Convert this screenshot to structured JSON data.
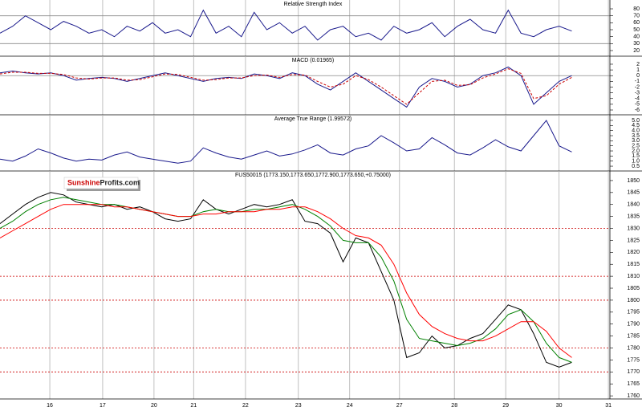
{
  "chart_data": [
    {
      "type": "line",
      "title": "Relative Strength Index",
      "x": [
        0,
        0.25,
        0.5,
        0.75,
        1,
        1.25,
        1.5,
        1.75,
        2,
        2.25,
        2.5,
        2.75,
        3,
        3.25,
        3.5,
        3.75,
        4,
        4.25,
        4.5,
        4.75,
        5,
        5.25,
        5.5,
        5.75,
        6,
        6.25,
        6.5,
        6.75,
        7,
        7.25,
        7.5,
        7.75,
        8,
        8.25,
        8.5,
        8.75,
        9,
        9.25,
        9.5,
        9.75,
        10,
        10.25,
        10.5,
        10.75,
        11,
        11.25
      ],
      "series": [
        {
          "name": "RSI",
          "color": "#1a1a8c",
          "style": "solid",
          "values": [
            45,
            55,
            70,
            60,
            50,
            62,
            55,
            45,
            50,
            40,
            55,
            48,
            60,
            45,
            50,
            40,
            78,
            45,
            55,
            40,
            75,
            50,
            60,
            45,
            55,
            35,
            50,
            55,
            40,
            45,
            35,
            55,
            45,
            50,
            60,
            40,
            55,
            65,
            50,
            45,
            78,
            45,
            40,
            50,
            55,
            48
          ]
        }
      ],
      "hlines": {
        "values": [
          70,
          30
        ],
        "color": "#888888",
        "style": "solid"
      },
      "xlim": [
        0,
        12
      ],
      "xticks": [
        0.98,
        2.02,
        3.03,
        3.81,
        4.83,
        5.87,
        6.88,
        7.86,
        8.94,
        9.95,
        11.0,
        11.97
      ],
      "ylim": [
        11.9,
        92.7
      ],
      "yticks": [
        80,
        70,
        60,
        50,
        40,
        30,
        20
      ]
    },
    {
      "type": "line",
      "title": "MACD (0.01965)",
      "x": [
        0,
        0.25,
        0.5,
        0.75,
        1,
        1.25,
        1.5,
        1.75,
        2,
        2.25,
        2.5,
        2.75,
        3,
        3.25,
        3.5,
        3.75,
        4,
        4.25,
        4.5,
        4.75,
        5,
        5.25,
        5.5,
        5.75,
        6,
        6.25,
        6.5,
        6.75,
        7,
        7.25,
        7.5,
        7.75,
        8,
        8.25,
        8.5,
        8.75,
        9,
        9.25,
        9.5,
        9.75,
        10,
        10.25,
        10.5,
        10.75,
        11,
        11.25
      ],
      "series": [
        {
          "name": "MACD",
          "color": "#1a1a8c",
          "style": "solid",
          "values": [
            0.5,
            0.8,
            0.5,
            0.3,
            0.5,
            0,
            -0.8,
            -0.5,
            -0.3,
            -0.5,
            -1,
            -0.5,
            0,
            0.5,
            0,
            -0.5,
            -1,
            -0.5,
            -0.3,
            -0.5,
            0.3,
            0,
            -0.5,
            0.5,
            0,
            -1.5,
            -2.5,
            -1,
            0.5,
            -1,
            -2.5,
            -4,
            -5.5,
            -2,
            -0.5,
            -1,
            -2,
            -1.5,
            0,
            0.5,
            1.5,
            0,
            -5,
            -3,
            -1,
            0
          ]
        },
        {
          "name": "Signal",
          "color": "#cc0000",
          "style": "dashed",
          "values": [
            0.3,
            0.6,
            0.6,
            0.4,
            0.4,
            0.2,
            -0.4,
            -0.6,
            -0.4,
            -0.4,
            -0.8,
            -0.7,
            -0.2,
            0.3,
            0.2,
            -0.3,
            -0.8,
            -0.7,
            -0.4,
            -0.4,
            0,
            0.1,
            -0.3,
            0.2,
            0.1,
            -1,
            -2,
            -1.5,
            0,
            -0.7,
            -2,
            -3.5,
            -5,
            -3,
            -1,
            -0.8,
            -1.7,
            -1.6,
            -0.4,
            0.3,
            1.2,
            0.4,
            -4,
            -3.5,
            -1.5,
            -0.3
          ]
        }
      ],
      "hlines": {
        "values": [
          0
        ],
        "color": "#888888",
        "style": "solid"
      },
      "xlim": [
        0,
        12
      ],
      "xticks": [
        0.98,
        2.02,
        3.03,
        3.81,
        4.83,
        5.87,
        6.88,
        7.86,
        8.94,
        9.95,
        11.0,
        11.97
      ],
      "ylim": [
        -6.84,
        3.4
      ],
      "yticks": [
        2,
        1,
        0,
        -1,
        -2,
        -3,
        -4,
        -5,
        -6
      ]
    },
    {
      "type": "line",
      "title": "Average True Range (1.99572)",
      "x": [
        0,
        0.25,
        0.5,
        0.75,
        1,
        1.25,
        1.5,
        1.75,
        2,
        2.25,
        2.5,
        2.75,
        3,
        3.25,
        3.5,
        3.75,
        4,
        4.25,
        4.5,
        4.75,
        5,
        5.25,
        5.5,
        5.75,
        6,
        6.25,
        6.5,
        6.75,
        7,
        7.25,
        7.5,
        7.75,
        8,
        8.25,
        8.5,
        8.75,
        9,
        9.25,
        9.5,
        9.75,
        10,
        10.25,
        10.5,
        10.75,
        11,
        11.25
      ],
      "series": [
        {
          "name": "ATR",
          "color": "#1a1a8c",
          "style": "solid",
          "values": [
            1.2,
            1.0,
            1.5,
            2.2,
            1.8,
            1.3,
            1.0,
            1.2,
            1.1,
            1.6,
            1.9,
            1.4,
            1.2,
            1.0,
            0.8,
            1.0,
            2.3,
            1.8,
            1.4,
            1.2,
            1.6,
            2.0,
            1.5,
            1.7,
            2.1,
            2.6,
            1.8,
            1.6,
            2.2,
            2.5,
            3.5,
            2.8,
            2.0,
            2.2,
            3.3,
            2.6,
            1.8,
            1.6,
            2.3,
            3.1,
            2.4,
            2.0,
            3.5,
            5.0,
            2.5,
            1.9
          ]
        }
      ],
      "xlim": [
        0,
        12
      ],
      "xticks": [
        0.98,
        2.02,
        3.03,
        3.81,
        4.83,
        5.87,
        6.88,
        7.86,
        8.94,
        9.95,
        11.0,
        11.97
      ],
      "ylim": [
        0.03,
        5.55
      ],
      "yticks": [
        {
          "value": 5,
          "label": "5.0"
        },
        4.5,
        {
          "value": 4,
          "label": "4.0"
        },
        3.5,
        {
          "value": 3,
          "label": "3.0"
        },
        2.5,
        {
          "value": 2,
          "label": "2.0"
        },
        1.5,
        {
          "value": 1,
          "label": "1.0"
        },
        0.5
      ]
    },
    {
      "type": "line",
      "title": "FUS50015 (1773.150,1773.650,1772.900,1773.650,+0.75000)",
      "x": [
        0,
        0.25,
        0.5,
        0.75,
        1,
        1.25,
        1.5,
        1.75,
        2,
        2.25,
        2.5,
        2.75,
        3,
        3.25,
        3.5,
        3.75,
        4,
        4.25,
        4.5,
        4.75,
        5,
        5.25,
        5.5,
        5.75,
        6,
        6.25,
        6.5,
        6.75,
        7,
        7.25,
        7.5,
        7.75,
        8,
        8.25,
        8.5,
        8.75,
        9,
        9.25,
        9.5,
        9.75,
        10,
        10.25,
        10.5,
        10.75,
        11,
        11.25
      ],
      "series": [
        {
          "name": "Price",
          "color": "#000000",
          "style": "solid",
          "values": [
            1832,
            1836,
            1840,
            1843,
            1845,
            1844,
            1841,
            1840,
            1839,
            1840,
            1838,
            1839,
            1837,
            1834,
            1833,
            1834,
            1842,
            1838,
            1836,
            1838,
            1840,
            1839,
            1840,
            1842,
            1833,
            1832,
            1828,
            1816,
            1826,
            1824,
            1812,
            1800,
            1776,
            1778,
            1785,
            1780,
            1781,
            1784,
            1786,
            1792,
            1798,
            1796,
            1786,
            1774,
            1772,
            1774
          ]
        },
        {
          "name": "Fast MA",
          "color": "#008000",
          "style": "solid",
          "values": [
            1830,
            1833,
            1837,
            1840,
            1842,
            1843,
            1842,
            1841,
            1840,
            1840,
            1839,
            1838,
            1837,
            1836,
            1835,
            1835,
            1837,
            1838,
            1837,
            1837,
            1838,
            1838,
            1839,
            1840,
            1838,
            1835,
            1831,
            1825,
            1824,
            1824,
            1818,
            1808,
            1792,
            1784,
            1783,
            1782,
            1781,
            1782,
            1784,
            1788,
            1794,
            1796,
            1791,
            1782,
            1776,
            1774
          ]
        },
        {
          "name": "Slow MA",
          "color": "#ff0000",
          "style": "solid",
          "values": [
            1826,
            1829,
            1832,
            1835,
            1838,
            1840,
            1840,
            1840,
            1840,
            1839,
            1839,
            1838,
            1837,
            1836,
            1835,
            1835,
            1836,
            1836,
            1837,
            1837,
            1837,
            1838,
            1838,
            1839,
            1839,
            1837,
            1834,
            1830,
            1827,
            1826,
            1823,
            1815,
            1803,
            1794,
            1789,
            1786,
            1784,
            1783,
            1783,
            1785,
            1788,
            1791,
            1791,
            1787,
            1780,
            1776
          ]
        }
      ],
      "hlines": {
        "values": [
          1830,
          1810,
          1800,
          1780,
          1770
        ],
        "color": "#cc0000",
        "style": "dotted"
      },
      "xlim": [
        0,
        12
      ],
      "xticks": [
        {
          "value": 0.98,
          "label": "16"
        },
        {
          "value": 2.02,
          "label": "17"
        },
        {
          "value": 3.03,
          "label": "20"
        },
        {
          "value": 3.81,
          "label": "21"
        },
        {
          "value": 4.83,
          "label": "22"
        },
        {
          "value": 5.87,
          "label": "23"
        },
        {
          "value": 6.88,
          "label": "24"
        },
        {
          "value": 7.86,
          "label": "27"
        },
        {
          "value": 8.94,
          "label": "28"
        },
        {
          "value": 9.95,
          "label": "29"
        },
        {
          "value": 11.0,
          "label": "30"
        },
        {
          "value": 11.97,
          "label": "31"
        }
      ],
      "ylim": [
        1758.7,
        1854
      ],
      "yticks": [
        1850,
        1845,
        1840,
        1835,
        1830,
        1825,
        1820,
        1815,
        1810,
        1805,
        1800,
        1795,
        1790,
        1785,
        1780,
        1775,
        1770,
        1765,
        1760
      ]
    }
  ],
  "logo": {
    "part1": "Sunshine",
    "part2": "Profits.com"
  }
}
